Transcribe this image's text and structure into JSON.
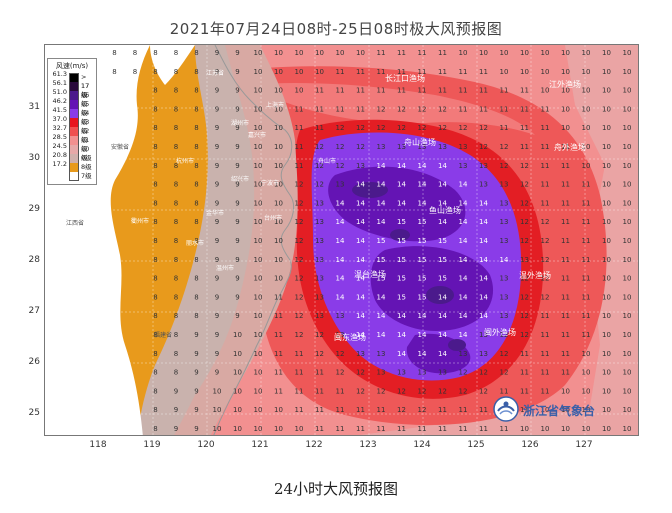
{
  "title": "2021年07月24日08时-25日08时极大风预报图",
  "caption": "24小时大风预报图",
  "y_ticks": [
    "31",
    "30",
    "29",
    "28",
    "27",
    "26",
    "25"
  ],
  "x_ticks": [
    "118",
    "119",
    "120",
    "121",
    "122",
    "123",
    "124",
    "125",
    "126",
    "127"
  ],
  "legend": {
    "title": "风速(m/s)",
    "items": [
      {
        "value": "61.3",
        "label": "> 17级",
        "color": "#000000"
      },
      {
        "value": "56.1",
        "label": "17级",
        "color": "#2a0a3c"
      },
      {
        "value": "51.0",
        "label": "16级",
        "color": "#4b1a8c"
      },
      {
        "value": "46.2",
        "label": "15级",
        "color": "#6414b4"
      },
      {
        "value": "41.5",
        "label": "14级",
        "color": "#8a3ce8"
      },
      {
        "value": "37.0",
        "label": "13级",
        "color": "#e8141e"
      },
      {
        "value": "32.7",
        "label": "12级",
        "color": "#f05050"
      },
      {
        "value": "28.5",
        "label": "11级",
        "color": "#f29090"
      },
      {
        "value": "24.5",
        "label": "10级",
        "color": "#e6a8a8"
      },
      {
        "value": "20.8",
        "label": "9级",
        "color": "#cfb0ac"
      },
      {
        "value": "17.2",
        "label": "8级",
        "color": "#e89a1c"
      },
      {
        "value": "",
        "label": "7级",
        "color": "#ffffff"
      }
    ]
  },
  "place_labels": [
    {
      "text": "长江口渔场"
    },
    {
      "text": "江外渔场"
    },
    {
      "text": "舟山渔场"
    },
    {
      "text": "舟外渔场"
    },
    {
      "text": "鱼山渔场"
    },
    {
      "text": "温台渔场"
    },
    {
      "text": "温外渔场"
    },
    {
      "text": "闽东渔场"
    },
    {
      "text": "闽外渔场"
    },
    {
      "text": "上海市"
    },
    {
      "text": "江苏省"
    },
    {
      "text": "安徽省"
    },
    {
      "text": "江西省"
    },
    {
      "text": "福建省"
    },
    {
      "text": "杭州市"
    },
    {
      "text": "湖州市"
    },
    {
      "text": "嘉兴市"
    },
    {
      "text": "绍兴市"
    },
    {
      "text": "宁波市"
    },
    {
      "text": "舟山市"
    },
    {
      "text": "金华市"
    },
    {
      "text": "衢州市"
    },
    {
      "text": "台州市"
    },
    {
      "text": "丽水市"
    },
    {
      "text": "温州市"
    }
  ],
  "logo": {
    "text": "浙江省气象台",
    "icon": "weather-bureau-logo-icon"
  },
  "colors": {
    "level8": "#e89a1c",
    "level9": "#cfb0ac",
    "level10": "#e6a8a8",
    "level11": "#f29090",
    "level12": "#f05050",
    "level13": "#e8141e",
    "level14": "#8a3ce8",
    "level15": "#6414b4",
    "level16": "#4b1a8c"
  }
}
